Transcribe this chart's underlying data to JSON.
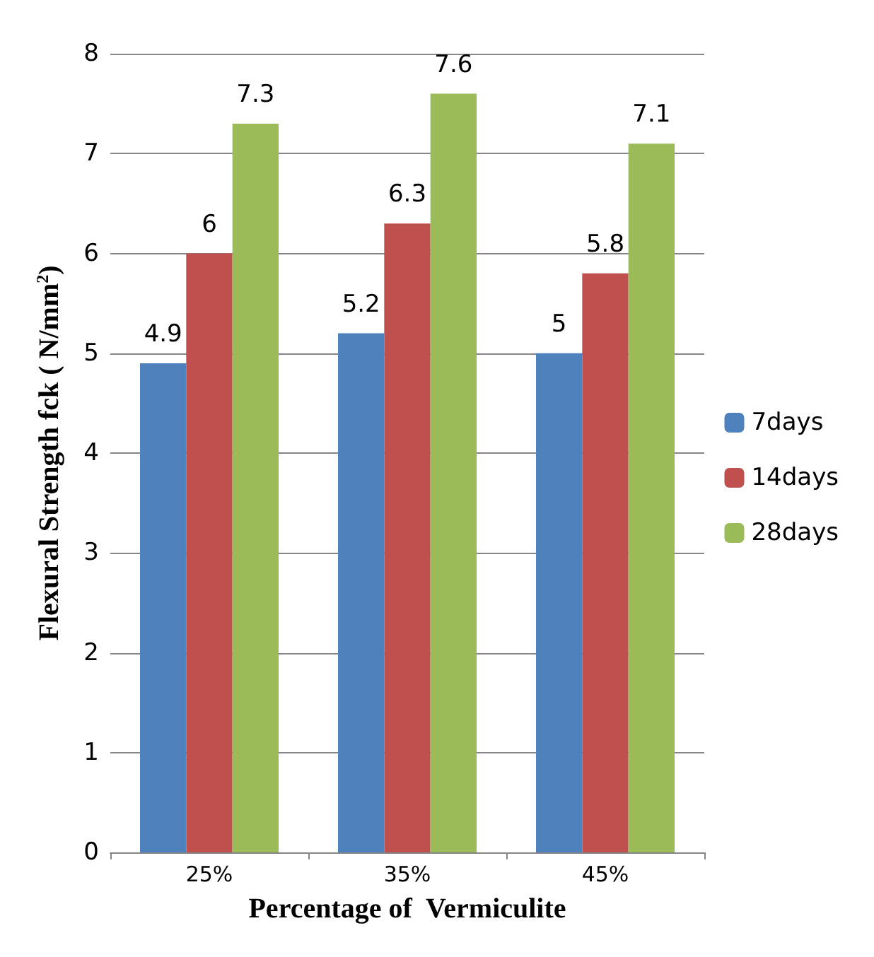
{
  "chart_data": {
    "type": "bar",
    "xlabel": "Percentage of  Vermiculite",
    "ylabel": "Flexural Strength fck ( N/mm$^{2}$)",
    "categories": [
      "25%",
      "35%",
      "45%"
    ],
    "series": [
      {
        "name": "7days",
        "color": "#4f81bd",
        "values": [
          4.9,
          5.2,
          5
        ]
      },
      {
        "name": "14days",
        "color": "#c0504d",
        "values": [
          6,
          6.3,
          5.8
        ]
      },
      {
        "name": "28days",
        "color": "#9bbb59",
        "values": [
          7.3,
          7.6,
          7.1
        ]
      }
    ],
    "ylim": [
      0,
      8
    ],
    "yticks": [
      0,
      1,
      2,
      3,
      4,
      5,
      6,
      7,
      8
    ],
    "grid": "y",
    "legend": "right",
    "data_labels": true
  }
}
